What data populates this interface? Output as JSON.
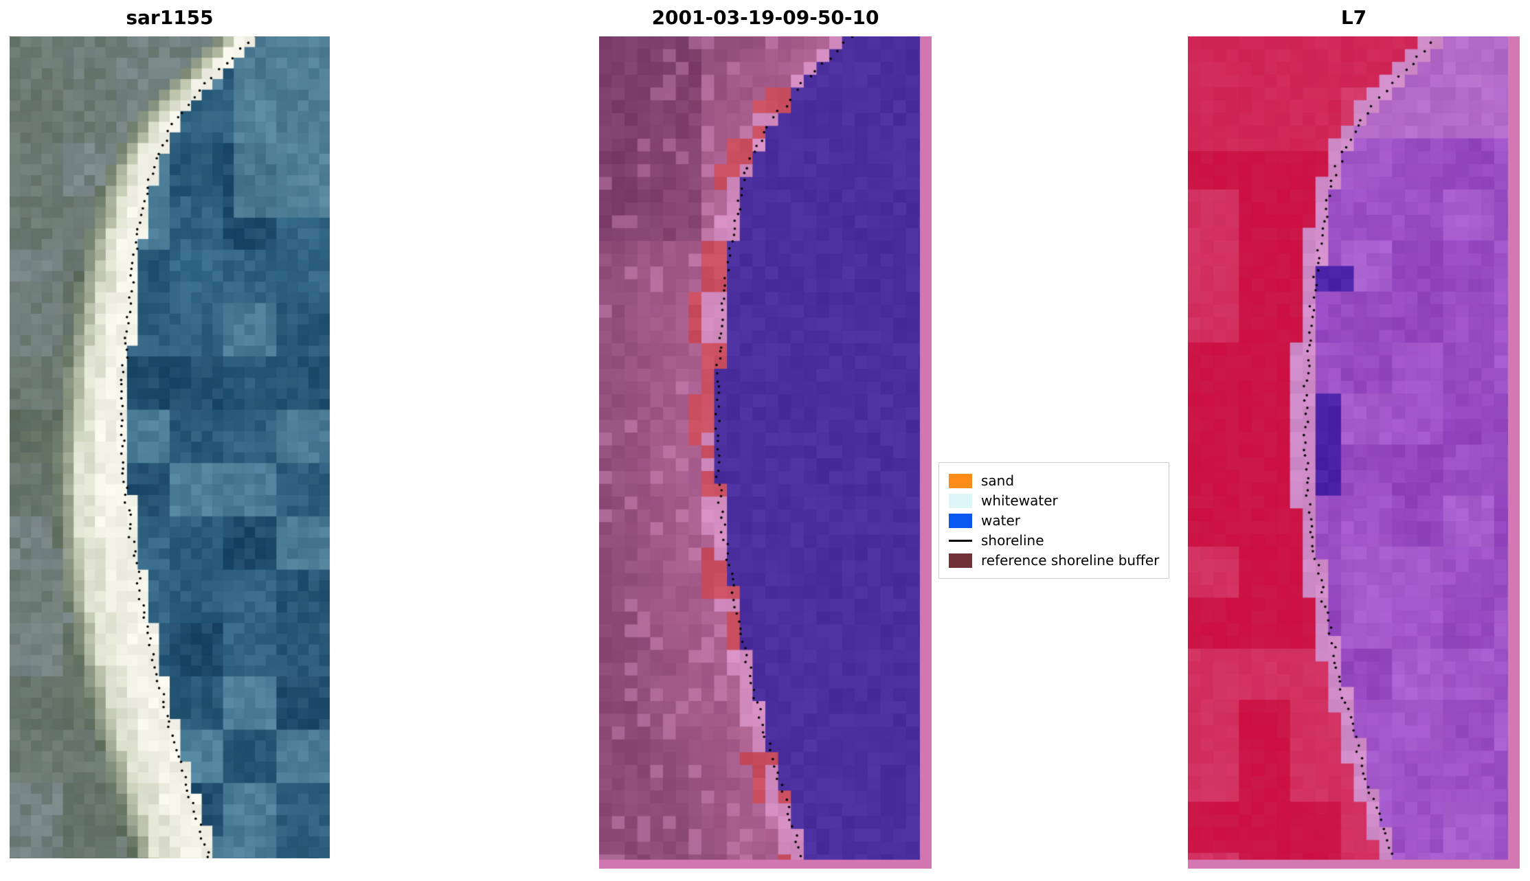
{
  "figure": {
    "background": "#ffffff",
    "panels": [
      {
        "id": "sar",
        "title": "sar1155",
        "type": "sar",
        "palette": {
          "water_deep": "#1d4868",
          "water_mid": "#3a708e",
          "water_light": "#74a0b2",
          "surf": "#f2f2e8",
          "beach_light": "#c9cfb6",
          "land_olive": "#5f6e5e",
          "land_gray": "#7c8a8c",
          "land_dark": "#46564b"
        }
      },
      {
        "id": "classified",
        "title": "2001-03-19-09-50-10",
        "type": "classified",
        "palette": {
          "water": "#4c2f9f",
          "shore_pink": "#d38cc0",
          "sand_red": "#c94f60",
          "land_rose": "#ad6292",
          "land_mauve": "#8d4c78",
          "land_dark": "#6d3260",
          "buffer_stripe": "#d277b2"
        }
      },
      {
        "id": "l7",
        "title": "L7",
        "type": "l7",
        "palette": {
          "land_red": "#d4164a",
          "land_red_dark": "#bc0f3f",
          "land_pink": "#da5580",
          "shore_pink": "#d08cc8",
          "water_purple": "#9245be",
          "water_purple_light": "#ae66d2",
          "water_indigo": "#4a22a8",
          "buffer_stripe": "#d478b4"
        }
      }
    ],
    "shoreline": {
      "color": "#000000",
      "style": "dotted",
      "points": [
        [
          0.0,
          0.76
        ],
        [
          0.05,
          0.63
        ],
        [
          0.1,
          0.52
        ],
        [
          0.16,
          0.445
        ],
        [
          0.24,
          0.4
        ],
        [
          0.32,
          0.375
        ],
        [
          0.42,
          0.355
        ],
        [
          0.52,
          0.355
        ],
        [
          0.6,
          0.375
        ],
        [
          0.68,
          0.41
        ],
        [
          0.76,
          0.45
        ],
        [
          0.84,
          0.5
        ],
        [
          0.92,
          0.56
        ],
        [
          1.0,
          0.625
        ]
      ]
    },
    "legend": {
      "items": [
        {
          "label": "sand",
          "swatch": "#ff8c19",
          "kind": "patch"
        },
        {
          "label": "whitewater",
          "swatch": "#def6f8",
          "kind": "patch"
        },
        {
          "label": "water",
          "swatch": "#0a58f0",
          "kind": "patch"
        },
        {
          "label": "shoreline",
          "swatch": "#000000",
          "kind": "line"
        },
        {
          "label": "reference shoreline buffer",
          "swatch": "#6f3036",
          "kind": "patch"
        }
      ]
    }
  },
  "chart_data": {
    "type": "heatmap",
    "title": "",
    "panels": [
      {
        "title": "sar1155",
        "content": "SAR backscatter image of a coastline with dotted shoreline overlay"
      },
      {
        "title": "2001-03-19-09-50-10",
        "content": "classified optical image (sand / whitewater / water classes) with dotted shoreline and pink reference shoreline buffer along right and bottom edges"
      },
      {
        "title": "L7",
        "content": "Landsat 7 false-color image with classification overlay, dotted shoreline and pink reference shoreline buffer along right and bottom edges"
      }
    ],
    "legend_entries": [
      "sand",
      "whitewater",
      "water",
      "shoreline",
      "reference shoreline buffer"
    ],
    "shoreline_points_normalized": [
      [
        0.0,
        0.76
      ],
      [
        0.05,
        0.63
      ],
      [
        0.1,
        0.52
      ],
      [
        0.16,
        0.445
      ],
      [
        0.24,
        0.4
      ],
      [
        0.32,
        0.375
      ],
      [
        0.42,
        0.355
      ],
      [
        0.52,
        0.355
      ],
      [
        0.6,
        0.375
      ],
      [
        0.68,
        0.41
      ],
      [
        0.76,
        0.45
      ],
      [
        0.84,
        0.5
      ],
      [
        0.92,
        0.56
      ],
      [
        1.0,
        0.625
      ]
    ],
    "layout_hints": {
      "grid": false,
      "legend_position": "center-right",
      "axes": "off"
    }
  }
}
